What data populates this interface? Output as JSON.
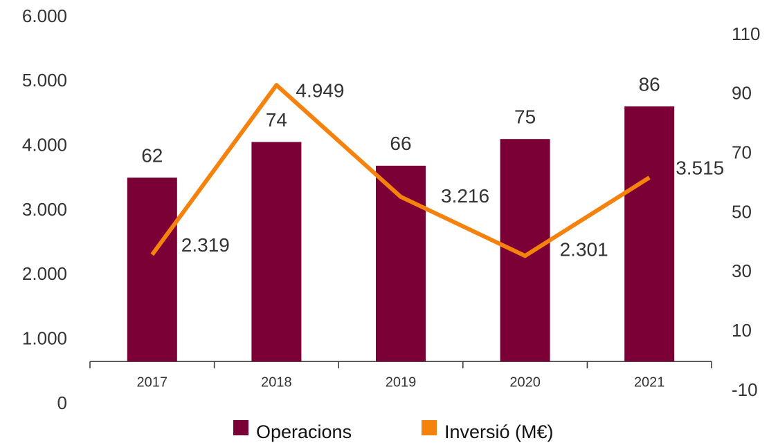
{
  "chart_data": {
    "type": "bar_line",
    "categories": [
      "2017",
      "2018",
      "2019",
      "2020",
      "2021"
    ],
    "series": [
      {
        "name": "Operacions",
        "type": "bar",
        "axis": "y2",
        "color": "#7a0036",
        "values": [
          62,
          74,
          66,
          75,
          86
        ]
      },
      {
        "name": "Inversió (M€)",
        "type": "line",
        "axis": "y",
        "color": "#f5820d",
        "values": [
          2319,
          4949,
          3216,
          2301,
          3515
        ],
        "value_labels": [
          "2.319",
          "4.949",
          "3.216",
          "2.301",
          "3.515"
        ]
      }
    ],
    "ylim": [
      0,
      6000
    ],
    "yticks": [
      0,
      {
        "value": 1000,
        "label": "1.000"
      },
      {
        "value": 2000,
        "label": "2.000"
      },
      {
        "value": 3000,
        "label": "3.000"
      },
      {
        "value": 4000,
        "label": "4.000"
      },
      {
        "value": 5000,
        "label": "5.000"
      },
      {
        "value": 6000,
        "label": "6.000"
      }
    ],
    "y2lim": [
      -10,
      110
    ],
    "y2ticks": [
      -10,
      10,
      30,
      50,
      70,
      90,
      110
    ],
    "legend": "bottom"
  }
}
